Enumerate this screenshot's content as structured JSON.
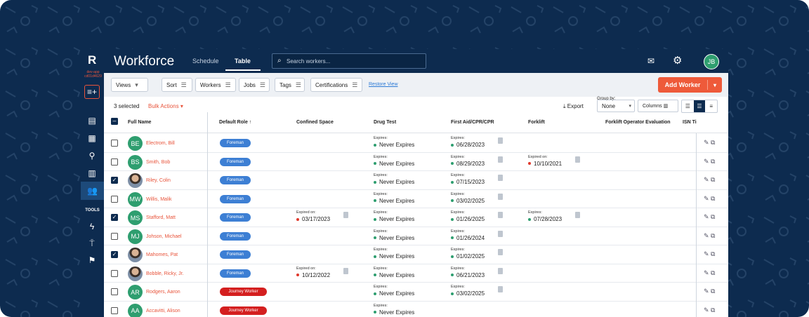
{
  "app": {
    "logo": "R",
    "dev_tag": "dev-app cd01d4629",
    "title": "Workforce",
    "tabs": [
      {
        "label": "Schedule"
      },
      {
        "label": "Table"
      }
    ],
    "search_placeholder": "Search workers...",
    "user_initials": "JB"
  },
  "nav": {
    "tools_label": "TOOLS"
  },
  "toolbar": {
    "views": "Views",
    "sort": "Sort",
    "workers": "Workers",
    "jobs": "Jobs",
    "tags": "Tags",
    "certifications": "Certifications",
    "restore_view": "Restore View",
    "add_worker": "Add Worker"
  },
  "selection": {
    "count": "3 selected",
    "bulk_actions": "Bulk Actions",
    "export": "Export",
    "group_by_label": "Group by:",
    "group_by_value": "None",
    "columns": "Columns"
  },
  "columns": [
    "Full Name",
    "Default Role",
    "Confined Space",
    "Drug Test",
    "First Aid/CPR/CPR",
    "Forklift",
    "Forklift Operator Evaluation",
    "ISN Ti"
  ],
  "colors": {
    "accent": "#ee5a3a",
    "navy": "#0d2b4f",
    "foreman": "#3d7fd4",
    "journey": "#d41f1f",
    "valid": "#2e9e6f",
    "expired": "#e0382b"
  },
  "rows": [
    {
      "initials": "BE",
      "name": "Electrom, Bill",
      "role": "Foreman",
      "checked": false,
      "confined": null,
      "drug": {
        "label": "Expires:",
        "value": "Never Expires"
      },
      "firstaid": {
        "label": "Expires:",
        "value": "06/28/2023"
      },
      "forklift": null
    },
    {
      "initials": "BS",
      "name": "Smith, Bob",
      "role": "Foreman",
      "checked": false,
      "confined": null,
      "drug": {
        "label": "Expires:",
        "value": "Never Expires"
      },
      "firstaid": {
        "label": "Expires:",
        "value": "08/29/2023"
      },
      "forklift": {
        "label": "Expired on:",
        "value": "10/10/2021",
        "expired": true
      }
    },
    {
      "initials": "RC",
      "name": "Riley, Colin",
      "role": "Foreman",
      "checked": true,
      "photo": true,
      "confined": null,
      "drug": {
        "label": "Expires:",
        "value": "Never Expires"
      },
      "firstaid": {
        "label": "Expires:",
        "value": "07/15/2023"
      },
      "forklift": null
    },
    {
      "initials": "MW",
      "name": "Willis, Malik",
      "role": "Foreman",
      "checked": false,
      "confined": null,
      "drug": {
        "label": "Expires:",
        "value": "Never Expires"
      },
      "firstaid": {
        "label": "Expires:",
        "value": "03/02/2025"
      },
      "forklift": null
    },
    {
      "initials": "MS",
      "name": "Stafford, Matt",
      "role": "Foreman",
      "checked": true,
      "confined": {
        "label": "Expired on:",
        "value": "03/17/2023",
        "expired": true
      },
      "drug": {
        "label": "Expires:",
        "value": "Never Expires"
      },
      "firstaid": {
        "label": "Expires:",
        "value": "01/26/2025"
      },
      "forklift": {
        "label": "Expires:",
        "value": "07/28/2023",
        "expired": false
      }
    },
    {
      "initials": "MJ",
      "name": "Johson, Michael",
      "role": "Foreman",
      "checked": false,
      "confined": null,
      "drug": {
        "label": "Expires:",
        "value": "Never Expires"
      },
      "firstaid": {
        "label": "Expires:",
        "value": "01/26/2024"
      },
      "forklift": null
    },
    {
      "initials": "MP",
      "name": "Mahomes, Pat",
      "role": "Foreman",
      "checked": true,
      "photo": true,
      "confined": null,
      "drug": {
        "label": "Expires:",
        "value": "Never Expires"
      },
      "firstaid": {
        "label": "Expires:",
        "value": "01/02/2025"
      },
      "forklift": null
    },
    {
      "initials": "RB",
      "name": "Bobble, Ricky, Jr.",
      "role": "Foreman",
      "checked": false,
      "photo": true,
      "confined": {
        "label": "Expired on:",
        "value": "10/12/2022",
        "expired": true
      },
      "drug": {
        "label": "Expires:",
        "value": "Never Expires"
      },
      "firstaid": {
        "label": "Expires:",
        "value": "06/21/2023"
      },
      "forklift": null
    },
    {
      "initials": "AR",
      "name": "Rodgers, Aaron",
      "role": "Journey Worker",
      "checked": false,
      "confined": null,
      "drug": {
        "label": "Expires:",
        "value": "Never Expires"
      },
      "firstaid": {
        "label": "Expires:",
        "value": "03/02/2025"
      },
      "forklift": null
    },
    {
      "initials": "AA",
      "name": "Accavitti, Alison",
      "role": "Journey Worker",
      "checked": false,
      "confined": null,
      "drug": {
        "label": "Expires:",
        "value": "Never Expires"
      },
      "firstaid": null,
      "forklift": null
    }
  ]
}
